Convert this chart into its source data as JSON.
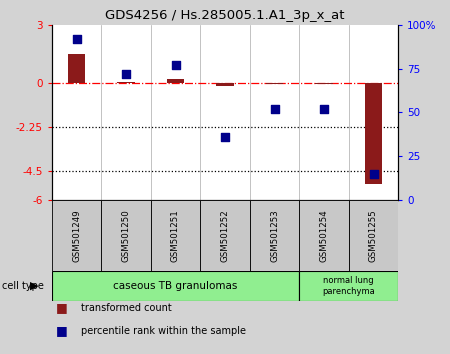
{
  "title": "GDS4256 / Hs.285005.1.A1_3p_x_at",
  "samples": [
    "GSM501249",
    "GSM501250",
    "GSM501251",
    "GSM501252",
    "GSM501253",
    "GSM501254",
    "GSM501255"
  ],
  "transformed_counts": [
    1.5,
    0.05,
    0.2,
    -0.15,
    -0.05,
    -0.05,
    -5.2
  ],
  "percentile_ranks": [
    92,
    72,
    77,
    36,
    52,
    52,
    15
  ],
  "ylim_left": [
    -6,
    3
  ],
  "ylim_right": [
    0,
    100
  ],
  "yticks_left": [
    3,
    0,
    -2.25,
    -4.5,
    -6
  ],
  "ytick_labels_left": [
    "3",
    "0",
    "-2.25",
    "-4.5",
    "-6"
  ],
  "yticks_right": [
    100,
    75,
    50,
    25,
    0
  ],
  "ytick_labels_right": [
    "100%",
    "75",
    "50",
    "25",
    "0"
  ],
  "bar_color": "#8B1A1A",
  "scatter_color": "#00008B",
  "cell_group1_label": "caseous TB granulomas",
  "cell_group1_count": 5,
  "cell_group2_label": "normal lung\nparenchyma",
  "cell_group2_count": 2,
  "cell_type_label": "cell type",
  "cell_color": "#90EE90",
  "sample_box_color": "#C8C8C8",
  "legend_bar_label": "transformed count",
  "legend_scatter_label": "percentile rank within the sample",
  "bg_color": "#D3D3D3",
  "plot_bg_color": "#FFFFFF",
  "fig_width": 4.5,
  "fig_height": 3.54,
  "dpi": 100
}
